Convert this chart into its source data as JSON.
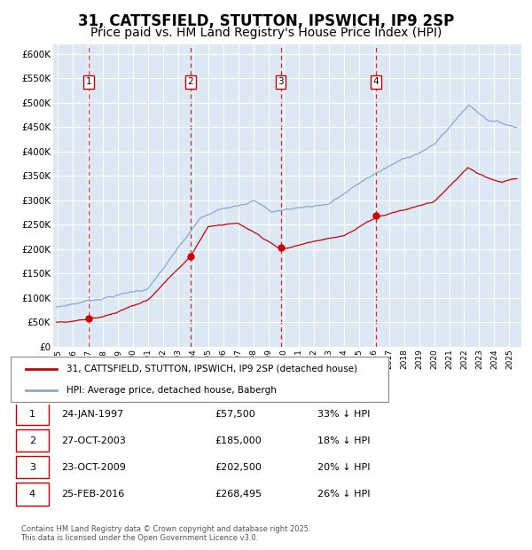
{
  "title": "31, CATTSFIELD, STUTTON, IPSWICH, IP9 2SP",
  "subtitle": "Price paid vs. HM Land Registry's House Price Index (HPI)",
  "title_fontsize": 12,
  "subtitle_fontsize": 10,
  "plot_bg_color": "#dce9f5",
  "grid_color": "#ffffff",
  "red_line_color": "#cc0000",
  "blue_line_color": "#88aacc",
  "marker_color": "#cc0000",
  "sale_points": [
    {
      "date_year": 1997.07,
      "price": 57500,
      "label": "1"
    },
    {
      "date_year": 2003.82,
      "price": 185000,
      "label": "2"
    },
    {
      "date_year": 2009.81,
      "price": 202500,
      "label": "3"
    },
    {
      "date_year": 2016.15,
      "price": 268495,
      "label": "4"
    }
  ],
  "vline_years": [
    1997.07,
    2003.82,
    2009.81,
    2016.15
  ],
  "ylim": [
    0,
    620000
  ],
  "xlim_start": 1994.7,
  "xlim_end": 2025.8,
  "ytick_values": [
    0,
    50000,
    100000,
    150000,
    200000,
    250000,
    300000,
    350000,
    400000,
    450000,
    500000,
    550000,
    600000
  ],
  "ytick_labels": [
    "£0",
    "£50K",
    "£100K",
    "£150K",
    "£200K",
    "£250K",
    "£300K",
    "£350K",
    "£400K",
    "£450K",
    "£500K",
    "£550K",
    "£600K"
  ],
  "xtick_years": [
    1995,
    1996,
    1997,
    1998,
    1999,
    2000,
    2001,
    2002,
    2003,
    2004,
    2005,
    2006,
    2007,
    2008,
    2009,
    2010,
    2011,
    2012,
    2013,
    2014,
    2015,
    2016,
    2017,
    2018,
    2019,
    2020,
    2021,
    2022,
    2023,
    2024,
    2025
  ],
  "legend_entries": [
    {
      "label": "31, CATTSFIELD, STUTTON, IPSWICH, IP9 2SP (detached house)",
      "color": "#cc0000"
    },
    {
      "label": "HPI: Average price, detached house, Babergh",
      "color": "#88aacc"
    }
  ],
  "table_rows": [
    {
      "num": "1",
      "date": "24-JAN-1997",
      "price": "£57,500",
      "pct": "33% ↓ HPI"
    },
    {
      "num": "2",
      "date": "27-OCT-2003",
      "price": "£185,000",
      "pct": "18% ↓ HPI"
    },
    {
      "num": "3",
      "date": "23-OCT-2009",
      "price": "£202,500",
      "pct": "20% ↓ HPI"
    },
    {
      "num": "4",
      "date": "25-FEB-2016",
      "price": "£268,495",
      "pct": "26% ↓ HPI"
    }
  ],
  "footnote": "Contains HM Land Registry data © Crown copyright and database right 2025.\nThis data is licensed under the Open Government Licence v3.0.",
  "box_labels": [
    {
      "label": "1",
      "year": 1997.07
    },
    {
      "label": "2",
      "year": 2003.82
    },
    {
      "label": "3",
      "year": 2009.81
    },
    {
      "label": "4",
      "year": 2016.15
    }
  ]
}
